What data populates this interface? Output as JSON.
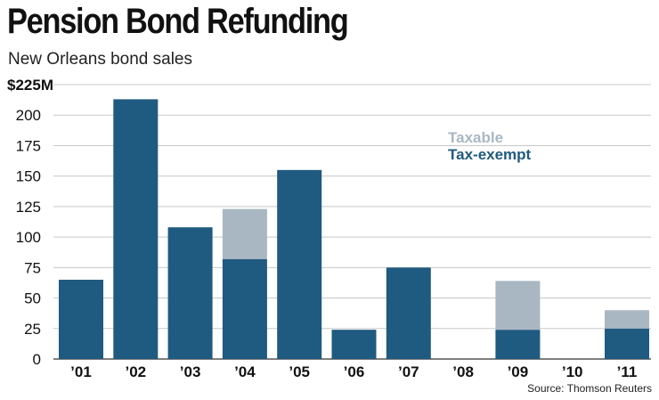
{
  "chart_data": {
    "type": "bar",
    "stacked": true,
    "title": "Pension Bond Refunding",
    "subtitle": "New Orleans bond sales",
    "source": "Source: Thomson Reuters",
    "ylabel": "",
    "xlabel": "",
    "ylim": [
      0,
      225
    ],
    "yticks": [
      0,
      25,
      50,
      75,
      100,
      125,
      150,
      175,
      200,
      225
    ],
    "ytick_labels": [
      "0",
      "25",
      "50",
      "75",
      "100",
      "125",
      "150",
      "175",
      "200",
      "$225M"
    ],
    "grid": true,
    "legend_position": "top-right",
    "categories": [
      "’01",
      "’02",
      "’03",
      "’04",
      "’05",
      "’06",
      "’07",
      "’08",
      "’09",
      "’10",
      "’11"
    ],
    "series": [
      {
        "name": "Tax-exempt",
        "color": "#1f5a80",
        "values": [
          65,
          213,
          108,
          82,
          155,
          24,
          75,
          0,
          24,
          0,
          25
        ]
      },
      {
        "name": "Taxable",
        "color": "#a9b7c2",
        "values": [
          0,
          0,
          0,
          41,
          0,
          0,
          0,
          0,
          40,
          0,
          15
        ]
      }
    ],
    "legend": [
      {
        "label": "Taxable",
        "color": "#a9b7c2"
      },
      {
        "label": "Tax-exempt",
        "color": "#1f5a80"
      }
    ]
  }
}
